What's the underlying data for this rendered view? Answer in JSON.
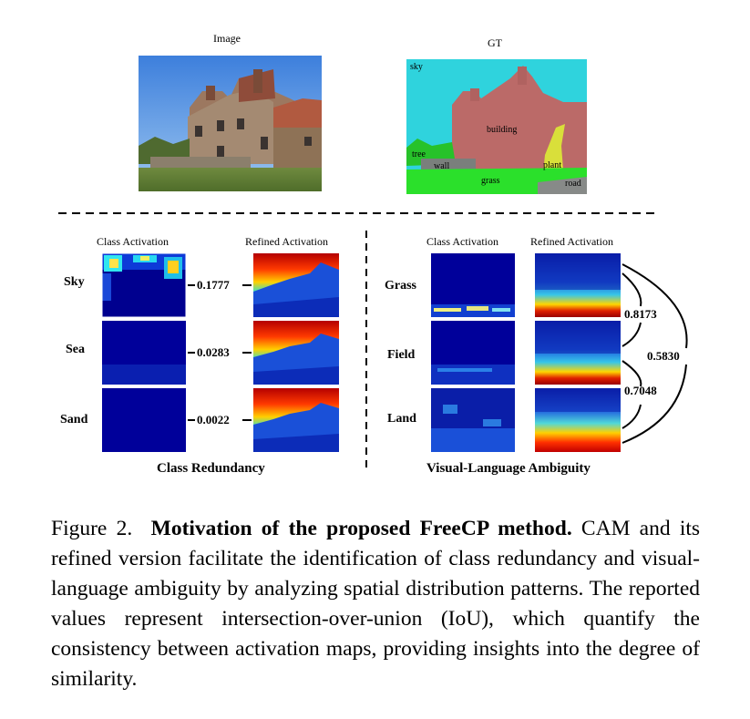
{
  "top": {
    "image_label": "Image",
    "gt_label": "GT",
    "gt_regions": {
      "sky": "sky",
      "building": "building",
      "tree": "tree",
      "wall": "wall",
      "plant": "plant",
      "grass": "grass",
      "road": "road"
    }
  },
  "left_section": {
    "col1": "Class Activation",
    "col2": "Refined Activation",
    "rows": [
      {
        "label": "Sky",
        "iou": "0.1777"
      },
      {
        "label": "Sea",
        "iou": "0.0283"
      },
      {
        "label": "Sand",
        "iou": "0.0022"
      }
    ],
    "title": "Class Redundancy"
  },
  "right_section": {
    "col1": "Class Activation",
    "col2": "Refined Activation",
    "rows": [
      {
        "label": "Grass"
      },
      {
        "label": "Field"
      },
      {
        "label": "Land"
      }
    ],
    "pair_ious": [
      "0.8173",
      "0.7048"
    ],
    "outer_iou": "0.5830",
    "title": "Visual-Language Ambiguity"
  },
  "caption": {
    "prefix": "Figure 2.",
    "bold": "Motivation of the proposed FreeCP method.",
    "text": "CAM and its refined version facilitate the identification of class redundancy and visual-language ambiguity by analyzing spatial distribution patterns. The reported values represent intersection-over-union (IoU), which quantify the consistency between activation maps, providing insights into the degree of similarity."
  },
  "colors": {
    "cam_dark": "#00008f",
    "cam_mid": "#1030d0",
    "sky_blue": "#4a86d8",
    "gt_sky": "#2fd3dd",
    "gt_building": "#bb6a68",
    "gt_grass": "#2be02b",
    "gt_plant": "#d9df3a"
  }
}
